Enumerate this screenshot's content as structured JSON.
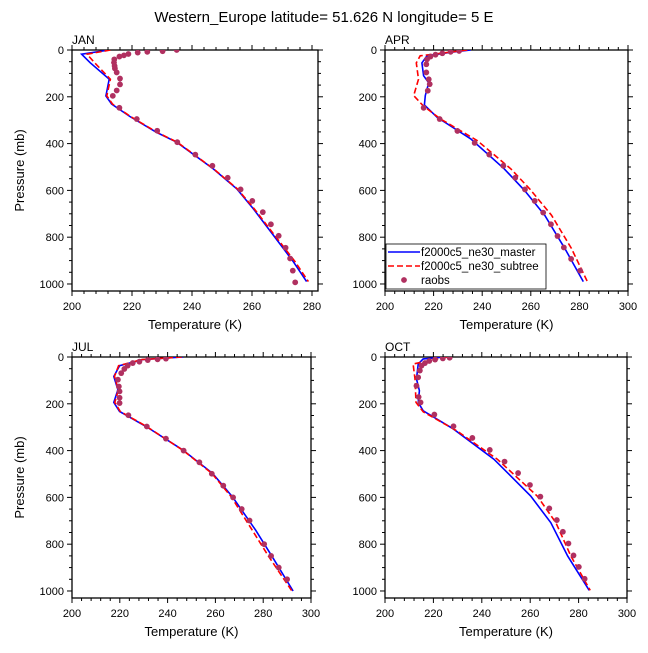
{
  "title": "Western_Europe  latitude= 51.626 N longitude= 5 E",
  "legend": {
    "entries": [
      "f2000c5_ne30_master",
      "f2000c5_ne30_subtree",
      "raobs"
    ],
    "placement": "bottom-left of APR panel"
  },
  "colors": {
    "master": "#0000ff",
    "subtree": "#ff0000",
    "raobs": "#b03060"
  },
  "chart_data": [
    {
      "type": "line",
      "panel": "JAN",
      "xlabel": "Temperature (K)",
      "ylabel": "Pressure (mb)",
      "xlim": [
        200,
        282
      ],
      "ylim": [
        0,
        1030
      ],
      "y_inverted": true,
      "xticks": [
        "200",
        "220",
        "240",
        "260",
        "280"
      ],
      "yticks": [
        "0",
        "200",
        "400",
        "600",
        "800",
        "1000"
      ],
      "series": [
        {
          "name": "f2000c5_ne30_master",
          "points": [
            [
              212.4,
              0
            ],
            [
              203.2,
              18
            ],
            [
              206,
              54
            ],
            [
              212.4,
              125
            ],
            [
              211.3,
              196
            ],
            [
              213.2,
              231
            ],
            [
              219.3,
              284
            ],
            [
              228.2,
              352
            ],
            [
              234.9,
              394
            ],
            [
              247.1,
              508
            ],
            [
              254.9,
              593
            ],
            [
              260.4,
              678
            ],
            [
              267.1,
              791
            ],
            [
              273.8,
              905
            ],
            [
              278.2,
              990
            ]
          ]
        },
        {
          "name": "f2000c5_ne30_subtree",
          "points": [
            [
              212.8,
              0
            ],
            [
              205,
              18
            ],
            [
              207.5,
              54
            ],
            [
              212.8,
              125
            ],
            [
              211.6,
              196
            ],
            [
              213.5,
              231
            ],
            [
              219.5,
              284
            ],
            [
              228.4,
              352
            ],
            [
              235.1,
              394
            ],
            [
              247.2,
              508
            ],
            [
              255.1,
              593
            ],
            [
              260.7,
              678
            ],
            [
              267.5,
              791
            ],
            [
              274.4,
              905
            ],
            [
              278.8,
              990
            ]
          ]
        },
        {
          "name": "raobs",
          "points": [
            [
              234.9,
              0
            ],
            [
              230.2,
              5
            ],
            [
              225.1,
              8
            ],
            [
              221.9,
              11
            ],
            [
              218.8,
              17
            ],
            [
              217.3,
              23
            ],
            [
              215.8,
              28
            ],
            [
              214.1,
              40
            ],
            [
              214,
              54
            ],
            [
              214.2,
              68
            ],
            [
              214.3,
              79
            ],
            [
              214.9,
              96
            ],
            [
              216,
              122
            ],
            [
              216,
              147
            ],
            [
              214.9,
              173
            ],
            [
              213.6,
              196
            ],
            [
              215.8,
              247
            ],
            [
              221.6,
              295
            ],
            [
              228.4,
              345
            ],
            [
              235.1,
              394
            ],
            [
              241.1,
              447
            ],
            [
              246.8,
              495
            ],
            [
              251.9,
              546
            ],
            [
              256.2,
              596
            ],
            [
              260.1,
              645
            ],
            [
              263.6,
              693
            ],
            [
              266.3,
              745
            ],
            [
              268.9,
              794
            ],
            [
              271.2,
              845
            ],
            [
              272.7,
              891
            ],
            [
              273.6,
              943
            ],
            [
              274.4,
              993
            ]
          ]
        }
      ]
    },
    {
      "type": "line",
      "panel": "APR",
      "xlabel": "Temperature (K)",
      "ylabel": "",
      "xlim": [
        200,
        300
      ],
      "ylim": [
        0,
        1030
      ],
      "y_inverted": true,
      "xticks": [
        "200",
        "220",
        "240",
        "260",
        "280",
        "300"
      ],
      "yticks": [
        "0",
        "200",
        "400",
        "600",
        "800",
        "1000"
      ],
      "series": [
        {
          "name": "f2000c5_ne30_master",
          "points": [
            [
              235.3,
              0
            ],
            [
              226.9,
              10
            ],
            [
              217.3,
              25
            ],
            [
              215.2,
              55
            ],
            [
              215.9,
              110
            ],
            [
              218,
              140
            ],
            [
              216.6,
              195
            ],
            [
              216.2,
              235
            ],
            [
              221.5,
              288
            ],
            [
              235.3,
              380
            ],
            [
              249.1,
              508
            ],
            [
              257.4,
              600
            ],
            [
              265.7,
              706
            ],
            [
              274,
              848
            ],
            [
              281.6,
              990
            ]
          ]
        },
        {
          "name": "f2000c5_ne30_subtree",
          "points": [
            [
              233.9,
              0
            ],
            [
              214.5,
              25
            ],
            [
              212.9,
              55
            ],
            [
              213.8,
              125
            ],
            [
              211.8,
              195
            ],
            [
              215.9,
              240
            ],
            [
              222.9,
              295
            ],
            [
              238,
              387
            ],
            [
              251.8,
              508
            ],
            [
              259.5,
              593
            ],
            [
              268.5,
              706
            ],
            [
              276.7,
              848
            ],
            [
              283.4,
              993
            ]
          ]
        },
        {
          "name": "raobs",
          "points": [
            [
              230.5,
              4
            ],
            [
              227,
              8
            ],
            [
              223.6,
              14
            ],
            [
              220.8,
              20
            ],
            [
              218.7,
              28
            ],
            [
              217.3,
              40
            ],
            [
              217,
              61
            ],
            [
              217,
              96
            ],
            [
              218,
              125
            ],
            [
              218.4,
              146
            ],
            [
              217.6,
              174
            ],
            [
              215.9,
              247
            ],
            [
              222.5,
              295
            ],
            [
              229.8,
              346
            ],
            [
              236.9,
              397
            ],
            [
              242.9,
              447
            ],
            [
              248.7,
              495
            ],
            [
              253.6,
              546
            ],
            [
              257.6,
              596
            ],
            [
              261.6,
              645
            ],
            [
              265.1,
              695
            ],
            [
              268.3,
              745
            ],
            [
              271,
              795
            ],
            [
              273.6,
              844
            ],
            [
              276.6,
              893
            ],
            [
              280.3,
              943
            ]
          ]
        }
      ]
    },
    {
      "type": "line",
      "panel": "JUL",
      "xlabel": "Temperature (K)",
      "ylabel": "Pressure (mb)",
      "xlim": [
        200,
        300
      ],
      "ylim": [
        0,
        1030
      ],
      "y_inverted": true,
      "xticks": [
        "200",
        "220",
        "240",
        "260",
        "280",
        "300"
      ],
      "yticks": [
        "0",
        "200",
        "400",
        "600",
        "800",
        "1000"
      ],
      "series": [
        {
          "name": "f2000c5_ne30_master",
          "points": [
            [
              246.5,
              0
            ],
            [
              229.6,
              11
            ],
            [
              219.9,
              37
            ],
            [
              217.5,
              83
            ],
            [
              219.2,
              140
            ],
            [
              217.5,
              194
            ],
            [
              219.9,
              233
            ],
            [
              231,
              297
            ],
            [
              246.3,
              397
            ],
            [
              258.8,
              497
            ],
            [
              267.1,
              597
            ],
            [
              276.8,
              740
            ],
            [
              283.8,
              854
            ],
            [
              292.5,
              1000
            ]
          ]
        },
        {
          "name": "f2000c5_ne30_subtree",
          "points": [
            [
              246,
              0
            ],
            [
              229.2,
              11
            ],
            [
              219.5,
              37
            ],
            [
              217.8,
              83
            ],
            [
              219.4,
              140
            ],
            [
              217.9,
              194
            ],
            [
              220.2,
              233
            ],
            [
              231.2,
              297
            ],
            [
              246.2,
              397
            ],
            [
              258.5,
              497
            ],
            [
              266.6,
              597
            ],
            [
              275.4,
              740
            ],
            [
              282.4,
              854
            ],
            [
              292,
              1000
            ]
          ]
        },
        {
          "name": "raobs",
          "points": [
            [
              239.3,
              7
            ],
            [
              235.8,
              10
            ],
            [
              231.7,
              13
            ],
            [
              228.2,
              20
            ],
            [
              225.4,
              26
            ],
            [
              223.3,
              37
            ],
            [
              221.9,
              51
            ],
            [
              220.6,
              69
            ],
            [
              219.2,
              97
            ],
            [
              219.6,
              126
            ],
            [
              219.9,
              147
            ],
            [
              219.9,
              174
            ],
            [
              219.9,
              197
            ],
            [
              223.6,
              249
            ],
            [
              231.3,
              297
            ],
            [
              239.3,
              349
            ],
            [
              246.7,
              400
            ],
            [
              253.3,
              450
            ],
            [
              258.5,
              499
            ],
            [
              263.3,
              550
            ],
            [
              267.4,
              600
            ],
            [
              271,
              650
            ],
            [
              274.3,
              699
            ],
            [
              280.4,
              800
            ],
            [
              283.3,
              850
            ],
            [
              286.5,
              900
            ],
            [
              290,
              950
            ]
          ]
        }
      ]
    },
    {
      "type": "line",
      "panel": "OCT",
      "xlabel": "Temperature (K)",
      "ylabel": "",
      "xlim": [
        200,
        300
      ],
      "ylim": [
        0,
        1030
      ],
      "y_inverted": true,
      "xticks": [
        "200",
        "220",
        "240",
        "260",
        "280",
        "300"
      ],
      "yticks": [
        "0",
        "200",
        "400",
        "600",
        "800",
        "1000"
      ],
      "series": [
        {
          "name": "f2000c5_ne30_master",
          "points": [
            [
              224.9,
              0
            ],
            [
              215.8,
              8
            ],
            [
              213.7,
              30
            ],
            [
              213,
              94
            ],
            [
              214.2,
              144
            ],
            [
              213.7,
              194
            ],
            [
              215.8,
              230
            ],
            [
              228.3,
              308
            ],
            [
              245,
              437
            ],
            [
              260.2,
              594
            ],
            [
              268.5,
              708
            ],
            [
              275.5,
              851
            ],
            [
              284.4,
              997
            ]
          ]
        },
        {
          "name": "f2000c5_ne30_subtree",
          "points": [
            [
              225.6,
              0
            ],
            [
              211.6,
              30
            ],
            [
              212.4,
              94
            ],
            [
              212.8,
              194
            ],
            [
              215.8,
              234
            ],
            [
              229.7,
              316
            ],
            [
              246.4,
              437
            ],
            [
              262.9,
              594
            ],
            [
              270.6,
              708
            ],
            [
              276.8,
              851
            ],
            [
              284.8,
              997
            ]
          ]
        },
        {
          "name": "raobs",
          "points": [
            [
              226.7,
              3
            ],
            [
              223.9,
              6
            ],
            [
              220.7,
              11
            ],
            [
              218.3,
              17
            ],
            [
              216.5,
              26
            ],
            [
              215.1,
              37
            ],
            [
              214.4,
              58
            ],
            [
              213.7,
              87
            ],
            [
              213,
              123
            ],
            [
              213.9,
              171
            ],
            [
              214.7,
              194
            ],
            [
              220.4,
              246
            ],
            [
              228.3,
              296
            ],
            [
              236.1,
              346
            ],
            [
              243.3,
              397
            ],
            [
              249.4,
              447
            ],
            [
              255,
              496
            ],
            [
              259.9,
              547
            ],
            [
              264.2,
              597
            ],
            [
              267.9,
              647
            ],
            [
              271,
              697
            ],
            [
              273.5,
              747
            ],
            [
              275.8,
              797
            ],
            [
              277.9,
              848
            ],
            [
              280.1,
              897
            ],
            [
              282.5,
              948
            ]
          ]
        }
      ]
    }
  ]
}
